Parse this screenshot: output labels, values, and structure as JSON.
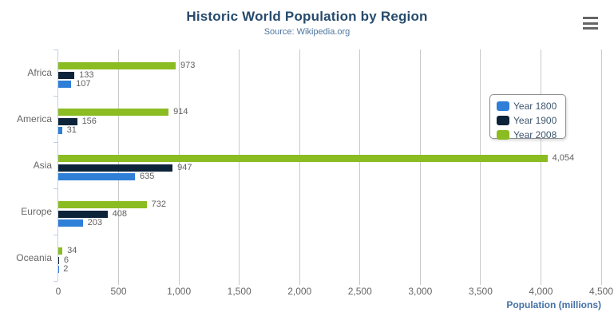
{
  "title": "Historic World Population by Region",
  "subtitle": "Source: Wikipedia.org",
  "export_menu": {
    "icon": "hamburger-icon"
  },
  "legend": {
    "items": [
      {
        "label": "Year 1800",
        "color": "#2f7ed8"
      },
      {
        "label": "Year 1900",
        "color": "#0d233a"
      },
      {
        "label": "Year 2008",
        "color": "#8bbc21"
      }
    ]
  },
  "chart_data": {
    "type": "bar",
    "orientation": "horizontal",
    "title": "Historic World Population by Region",
    "subtitle": "Source: Wikipedia.org",
    "categories": [
      "Africa",
      "America",
      "Asia",
      "Europe",
      "Oceania"
    ],
    "series": [
      {
        "name": "Year 1800",
        "color": "#2f7ed8",
        "values": [
          107,
          31,
          635,
          203,
          2
        ],
        "labels": [
          "107",
          "31",
          "635",
          "203",
          "2"
        ]
      },
      {
        "name": "Year 1900",
        "color": "#0d233a",
        "values": [
          133,
          156,
          947,
          408,
          6
        ],
        "labels": [
          "133",
          "156",
          "947",
          "408",
          "6"
        ]
      },
      {
        "name": "Year 2008",
        "color": "#8bbc21",
        "values": [
          973,
          914,
          4054,
          732,
          34
        ],
        "labels": [
          "973",
          "914",
          "4,054",
          "732",
          "34"
        ]
      }
    ],
    "series_render_order_top_to_bottom": [
      "Year 2008",
      "Year 1900",
      "Year 1800"
    ],
    "xlabel": "Population (millions)",
    "xlim": [
      0,
      4500
    ],
    "ticks": [
      {
        "value": 0,
        "label": "0"
      },
      {
        "value": 500,
        "label": "500"
      },
      {
        "value": 1000,
        "label": "1,000"
      },
      {
        "value": 1500,
        "label": "1,500"
      },
      {
        "value": 2000,
        "label": "2,000"
      },
      {
        "value": 2500,
        "label": "2,500"
      },
      {
        "value": 3000,
        "label": "3,000"
      },
      {
        "value": 3500,
        "label": "3,500"
      },
      {
        "value": 4000,
        "label": "4,000"
      },
      {
        "value": 4500,
        "label": "4,500"
      }
    ],
    "grid": true,
    "legend_position": "right-floating"
  }
}
